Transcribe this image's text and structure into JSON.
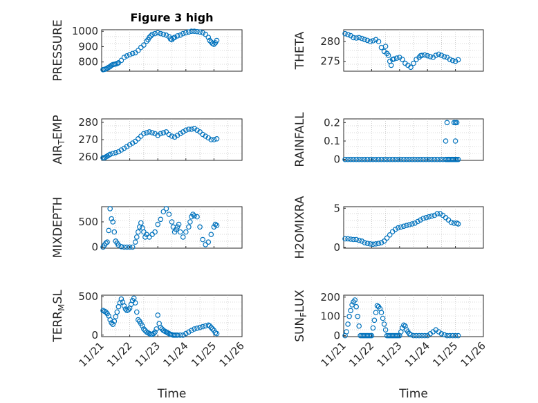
{
  "figure_title": "Figure 3 high",
  "colors": {
    "marker": "#0072BD",
    "axis": "#262626"
  },
  "chart_data": [
    {
      "type": "scatter",
      "name": "pressure",
      "ylabel_parts": [
        {
          "t": "PRESSURE"
        }
      ],
      "ylim": [
        740,
        1010
      ],
      "yticks": [
        800,
        900,
        1000
      ],
      "ytick_labels": [
        "800",
        "900",
        "1000"
      ],
      "xlim": [
        0,
        5
      ],
      "xticks": [
        0,
        1,
        2,
        3,
        4,
        5
      ],
      "show_x_ticklabels": false,
      "xlabel": "",
      "title": "Figure 3 high",
      "x": [
        0.05,
        0.1,
        0.15,
        0.2,
        0.25,
        0.3,
        0.35,
        0.4,
        0.45,
        0.5,
        0.55,
        0.6,
        0.7,
        0.8,
        0.9,
        1.0,
        1.1,
        1.2,
        1.3,
        1.4,
        1.5,
        1.6,
        1.65,
        1.7,
        1.75,
        1.8,
        1.9,
        2.0,
        2.1,
        2.2,
        2.3,
        2.4,
        2.45,
        2.5,
        2.55,
        2.6,
        2.7,
        2.8,
        2.9,
        3.0,
        3.1,
        3.2,
        3.3,
        3.4,
        3.5,
        3.6,
        3.7,
        3.8,
        3.85,
        3.9,
        3.95,
        4.0,
        4.05,
        4.1
      ],
      "y": [
        750,
        752,
        755,
        760,
        765,
        770,
        778,
        783,
        785,
        787,
        790,
        795,
        810,
        830,
        840,
        848,
        855,
        860,
        875,
        895,
        910,
        935,
        945,
        960,
        970,
        980,
        985,
        990,
        985,
        980,
        975,
        965,
        950,
        945,
        955,
        960,
        970,
        975,
        985,
        990,
        995,
        1000,
        1000,
        998,
        995,
        990,
        980,
        960,
        940,
        930,
        920,
        915,
        925,
        940
      ]
    },
    {
      "type": "scatter",
      "name": "theta",
      "ylabel_parts": [
        {
          "t": "THETA"
        }
      ],
      "ylim": [
        272.5,
        283.0
      ],
      "yticks": [
        275,
        280
      ],
      "ytick_labels": [
        "275",
        "280"
      ],
      "xlim": [
        0,
        5
      ],
      "xticks": [
        0,
        1,
        2,
        3,
        4,
        5
      ],
      "show_x_ticklabels": false,
      "xlabel": "",
      "x": [
        0.05,
        0.15,
        0.25,
        0.35,
        0.45,
        0.55,
        0.65,
        0.75,
        0.85,
        0.95,
        1.05,
        1.15,
        1.25,
        1.35,
        1.45,
        1.5,
        1.55,
        1.6,
        1.65,
        1.7,
        1.75,
        1.8,
        1.9,
        2.0,
        2.1,
        2.2,
        2.3,
        2.4,
        2.5,
        2.6,
        2.7,
        2.75,
        2.8,
        2.9,
        3.0,
        3.1,
        3.2,
        3.3,
        3.4,
        3.5,
        3.6,
        3.7,
        3.8,
        3.9,
        4.0,
        4.1
      ],
      "y": [
        282,
        281.8,
        281.5,
        281,
        280.9,
        281,
        280.8,
        280.5,
        280.3,
        280,
        280.2,
        280.5,
        280,
        278.5,
        277.5,
        278.8,
        277,
        276.5,
        275,
        274,
        275.5,
        275.6,
        275.8,
        276,
        275.5,
        274.5,
        274,
        273.5,
        274.5,
        275.5,
        276,
        276.4,
        276.5,
        276.6,
        276.4,
        276.2,
        276,
        276.5,
        276.8,
        276.5,
        276.2,
        276,
        275.5,
        275.2,
        275,
        275.4
      ]
    },
    {
      "type": "scatter",
      "name": "air_temp",
      "ylabel_parts": [
        {
          "t": "AIR"
        },
        {
          "t": "T",
          "sub": true
        },
        {
          "t": "EMP"
        }
      ],
      "ylim": [
        258,
        282
      ],
      "yticks": [
        260,
        270,
        280
      ],
      "ytick_labels": [
        "260",
        "270",
        "280"
      ],
      "xlim": [
        0,
        5
      ],
      "xticks": [
        0,
        1,
        2,
        3,
        4,
        5
      ],
      "show_x_ticklabels": false,
      "xlabel": "",
      "x": [
        0.05,
        0.1,
        0.15,
        0.2,
        0.25,
        0.3,
        0.4,
        0.5,
        0.6,
        0.7,
        0.8,
        0.9,
        1.0,
        1.1,
        1.2,
        1.3,
        1.4,
        1.5,
        1.6,
        1.7,
        1.8,
        1.9,
        2.0,
        2.1,
        2.2,
        2.3,
        2.4,
        2.5,
        2.6,
        2.7,
        2.8,
        2.9,
        3.0,
        3.1,
        3.2,
        3.3,
        3.4,
        3.5,
        3.6,
        3.7,
        3.8,
        3.9,
        4.0,
        4.1
      ],
      "y": [
        259.5,
        259.5,
        260,
        260.5,
        261,
        261.5,
        262,
        262.5,
        263,
        264,
        265,
        266,
        267,
        268,
        269,
        270.5,
        272,
        273.5,
        274,
        274.5,
        274,
        273.5,
        272.5,
        273.5,
        274,
        274.5,
        273,
        272,
        271.5,
        272.5,
        273.5,
        274.5,
        275.5,
        276,
        276,
        276.5,
        275.5,
        274.5,
        273,
        272,
        271,
        270,
        270,
        270.5
      ]
    },
    {
      "type": "scatter",
      "name": "rainfall",
      "ylabel_parts": [
        {
          "t": "RAINFALL"
        }
      ],
      "ylim": [
        -0.005,
        0.22
      ],
      "yticks": [
        0,
        0.1,
        0.2
      ],
      "ytick_labels": [
        "0",
        "0.1",
        "0.2"
      ],
      "xlim": [
        0,
        5
      ],
      "xticks": [
        0,
        1,
        2,
        3,
        4,
        5
      ],
      "show_x_ticklabels": false,
      "xlabel": "",
      "x": [
        0.05,
        0.15,
        0.25,
        0.35,
        0.45,
        0.55,
        0.65,
        0.75,
        0.85,
        0.95,
        1.05,
        1.15,
        1.25,
        1.35,
        1.45,
        1.55,
        1.65,
        1.75,
        1.85,
        1.95,
        2.05,
        2.15,
        2.25,
        2.35,
        2.45,
        2.55,
        2.65,
        2.75,
        2.85,
        2.95,
        3.05,
        3.15,
        3.25,
        3.35,
        3.45,
        3.55,
        3.65,
        3.7,
        3.75,
        3.8,
        3.85,
        3.9,
        3.95,
        4.0,
        4.05,
        4.1,
        3.65,
        3.7,
        3.95,
        4.0,
        4.05,
        4.0
      ],
      "y": [
        0,
        0,
        0,
        0,
        0,
        0,
        0,
        0,
        0,
        0,
        0,
        0,
        0,
        0,
        0,
        0,
        0,
        0,
        0,
        0,
        0,
        0,
        0,
        0,
        0,
        0,
        0,
        0,
        0,
        0,
        0,
        0,
        0,
        0,
        0,
        0,
        0,
        0,
        0,
        0,
        0,
        0,
        0,
        0,
        0,
        0,
        0.1,
        0.2,
        0.2,
        0.2,
        0.2,
        0.1
      ]
    },
    {
      "type": "scatter",
      "name": "mixdepth",
      "ylabel_parts": [
        {
          "t": "MIXDEPTH"
        }
      ],
      "ylim": [
        -20,
        800
      ],
      "yticks": [
        0,
        500
      ],
      "ytick_labels": [
        "0",
        "500"
      ],
      "xlim": [
        0,
        5
      ],
      "xticks": [
        0,
        1,
        2,
        3,
        4,
        5
      ],
      "show_x_ticklabels": false,
      "xlabel": "",
      "x": [
        0.05,
        0.1,
        0.15,
        0.2,
        0.25,
        0.3,
        0.35,
        0.4,
        0.45,
        0.5,
        0.55,
        0.6,
        0.7,
        0.8,
        0.9,
        1.0,
        1.1,
        1.2,
        1.25,
        1.3,
        1.35,
        1.4,
        1.45,
        1.5,
        1.55,
        1.6,
        1.7,
        1.8,
        1.9,
        2.0,
        2.1,
        2.2,
        2.3,
        2.4,
        2.5,
        2.55,
        2.6,
        2.65,
        2.7,
        2.75,
        2.8,
        2.9,
        3.0,
        3.1,
        3.15,
        3.2,
        3.25,
        3.3,
        3.4,
        3.5,
        3.6,
        3.7,
        3.8,
        3.9,
        4.0,
        4.05,
        4.1
      ],
      "y": [
        0,
        40,
        80,
        100,
        330,
        760,
        560,
        500,
        300,
        120,
        80,
        40,
        10,
        0,
        0,
        0,
        0,
        100,
        200,
        300,
        400,
        480,
        380,
        300,
        200,
        250,
        200,
        250,
        300,
        450,
        550,
        700,
        760,
        650,
        500,
        400,
        300,
        350,
        400,
        450,
        300,
        200,
        300,
        400,
        500,
        600,
        650,
        620,
        600,
        400,
        150,
        50,
        100,
        250,
        400,
        450,
        430
      ]
    },
    {
      "type": "scatter",
      "name": "h2omixra",
      "ylabel_parts": [
        {
          "t": "H2OMIXRA"
        }
      ],
      "ylim": [
        -0.1,
        5.2
      ],
      "yticks": [
        0,
        5
      ],
      "ytick_labels": [
        "0",
        "5"
      ],
      "xlim": [
        0,
        5
      ],
      "xticks": [
        0,
        1,
        2,
        3,
        4,
        5
      ],
      "show_x_ticklabels": false,
      "xlabel": "",
      "x": [
        0.05,
        0.15,
        0.25,
        0.35,
        0.45,
        0.55,
        0.65,
        0.75,
        0.85,
        0.95,
        1.05,
        1.15,
        1.25,
        1.35,
        1.45,
        1.55,
        1.65,
        1.75,
        1.85,
        1.95,
        2.05,
        2.15,
        2.25,
        2.35,
        2.45,
        2.55,
        2.65,
        2.75,
        2.85,
        2.95,
        3.05,
        3.15,
        3.25,
        3.35,
        3.45,
        3.55,
        3.65,
        3.75,
        3.85,
        3.95,
        4.05,
        4.1
      ],
      "y": [
        1.1,
        1.1,
        1.05,
        1.0,
        1.0,
        0.9,
        0.8,
        0.6,
        0.5,
        0.45,
        0.4,
        0.45,
        0.5,
        0.6,
        0.8,
        1.2,
        1.6,
        2.0,
        2.3,
        2.5,
        2.6,
        2.7,
        2.8,
        2.9,
        3.0,
        3.1,
        3.3,
        3.5,
        3.7,
        3.8,
        3.9,
        4.0,
        4.1,
        4.3,
        4.3,
        4.1,
        3.8,
        3.5,
        3.2,
        3.1,
        3.1,
        3.0
      ]
    },
    {
      "type": "scatter",
      "name": "terrmsl",
      "ylabel_parts": [
        {
          "t": "TERR"
        },
        {
          "t": "M",
          "sub": true
        },
        {
          "t": "SL"
        }
      ],
      "ylim": [
        -20,
        520
      ],
      "yticks": [
        0,
        500
      ],
      "ytick_labels": [
        "0",
        "500"
      ],
      "xlim": [
        0,
        5
      ],
      "xticks": [
        0,
        1,
        2,
        3,
        4,
        5
      ],
      "show_x_ticklabels": false,
      "xlabel": "Time",
      "x": [
        0.05,
        0.1,
        0.15,
        0.2,
        0.25,
        0.3,
        0.35,
        0.4,
        0.45,
        0.5,
        0.55,
        0.6,
        0.65,
        0.7,
        0.75,
        0.8,
        0.85,
        0.9,
        0.95,
        1.0,
        1.05,
        1.1,
        1.15,
        1.2,
        1.25,
        1.3,
        1.35,
        1.4,
        1.45,
        1.5,
        1.55,
        1.6,
        1.65,
        1.7,
        1.75,
        1.8,
        1.85,
        1.9,
        1.95,
        2.0,
        2.05,
        2.1,
        2.15,
        2.2,
        2.25,
        2.3,
        2.35,
        2.4,
        2.45,
        2.5,
        2.55,
        2.6,
        2.65,
        2.7,
        2.8,
        2.9,
        3.0,
        3.1,
        3.2,
        3.3,
        3.4,
        3.5,
        3.6,
        3.7,
        3.8,
        3.85,
        3.9,
        3.95,
        4.0,
        4.05,
        4.1
      ],
      "y": [
        320,
        310,
        300,
        280,
        250,
        200,
        160,
        140,
        180,
        240,
        300,
        370,
        420,
        470,
        430,
        380,
        340,
        320,
        330,
        350,
        400,
        450,
        480,
        420,
        300,
        200,
        180,
        150,
        120,
        80,
        60,
        40,
        30,
        20,
        10,
        10,
        20,
        40,
        80,
        260,
        150,
        100,
        80,
        60,
        50,
        40,
        30,
        20,
        10,
        5,
        0,
        0,
        0,
        0,
        0,
        0,
        20,
        40,
        60,
        80,
        90,
        100,
        110,
        120,
        130,
        120,
        100,
        80,
        60,
        30,
        20
      ]
    },
    {
      "type": "scatter",
      "name": "sunflux",
      "ylabel_parts": [
        {
          "t": "SUN"
        },
        {
          "t": "F",
          "sub": true
        },
        {
          "t": "LUX"
        }
      ],
      "ylim": [
        -5,
        210
      ],
      "yticks": [
        0,
        100,
        200
      ],
      "ytick_labels": [
        "0",
        "100",
        "200"
      ],
      "xlim": [
        0,
        5
      ],
      "xticks": [
        0,
        1,
        2,
        3,
        4,
        5
      ],
      "show_x_ticklabels": true,
      "xtick_labels": [
        "11/21",
        "11/22",
        "11/23",
        "11/24",
        "11/25",
        "11/26"
      ],
      "xlabel": "Time",
      "x": [
        0.05,
        0.1,
        0.15,
        0.2,
        0.25,
        0.3,
        0.35,
        0.4,
        0.45,
        0.5,
        0.55,
        0.6,
        0.65,
        0.7,
        0.75,
        0.8,
        0.85,
        0.9,
        0.95,
        1.0,
        1.05,
        1.1,
        1.15,
        1.2,
        1.25,
        1.3,
        1.35,
        1.4,
        1.45,
        1.5,
        1.55,
        1.6,
        1.65,
        1.7,
        1.75,
        1.8,
        1.85,
        1.9,
        1.95,
        2.0,
        2.05,
        2.1,
        2.15,
        2.2,
        2.25,
        2.3,
        2.35,
        2.4,
        2.5,
        2.6,
        2.7,
        2.8,
        2.9,
        3.0,
        3.1,
        3.2,
        3.3,
        3.4,
        3.5,
        3.6,
        3.7,
        3.8,
        3.9,
        4.0,
        4.1
      ],
      "y": [
        0,
        20,
        60,
        100,
        130,
        160,
        175,
        185,
        150,
        100,
        50,
        0,
        0,
        0,
        0,
        0,
        0,
        0,
        0,
        0,
        40,
        80,
        120,
        155,
        150,
        140,
        120,
        90,
        60,
        30,
        0,
        0,
        0,
        0,
        0,
        0,
        0,
        0,
        0,
        0,
        20,
        40,
        55,
        50,
        30,
        20,
        10,
        5,
        0,
        0,
        0,
        0,
        0,
        0,
        10,
        20,
        30,
        20,
        10,
        5,
        0,
        0,
        0,
        0,
        0
      ]
    }
  ]
}
